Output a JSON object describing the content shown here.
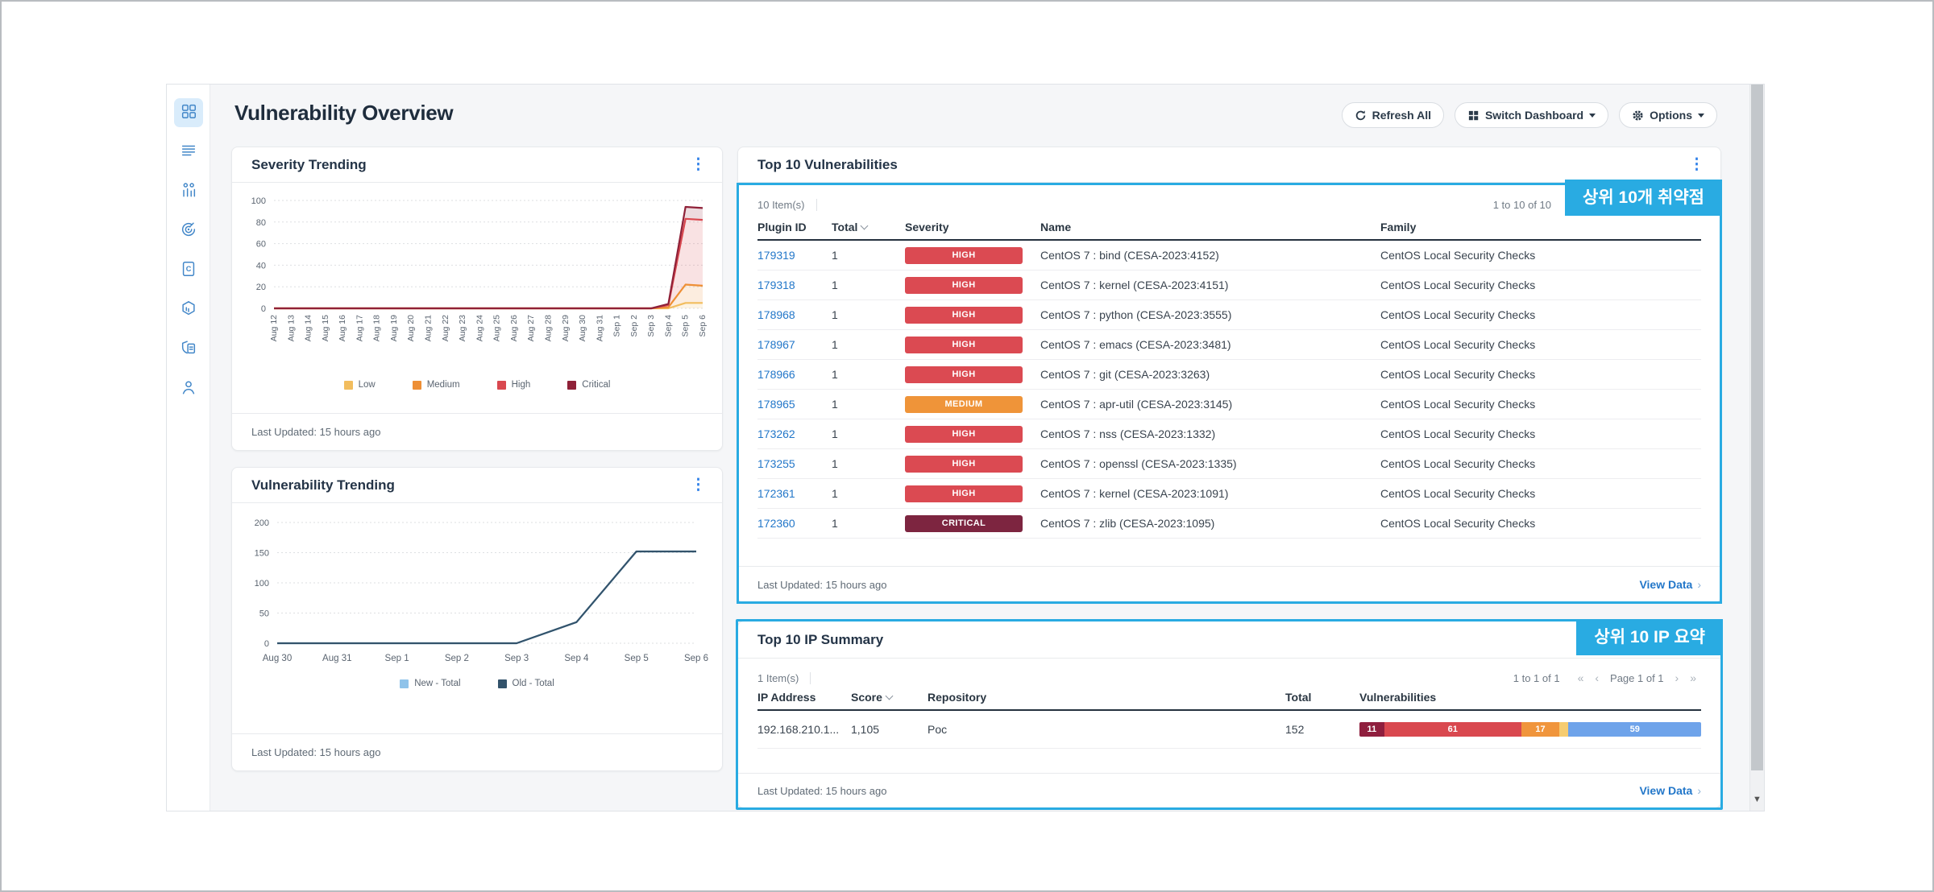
{
  "header": {
    "title": "Vulnerability Overview",
    "buttons": [
      {
        "label": "Refresh All",
        "icon": "refresh-icon",
        "caret": false
      },
      {
        "label": "Switch Dashboard",
        "icon": "grid-icon",
        "caret": true
      },
      {
        "label": "Options",
        "icon": "gear-icon",
        "caret": true
      }
    ]
  },
  "sidebar": {
    "items": [
      {
        "icon": "dashboard-grid-icon",
        "active": true
      },
      {
        "icon": "list-menu-icon",
        "active": false
      },
      {
        "icon": "org-chart-icon",
        "active": false
      },
      {
        "icon": "scan-target-icon",
        "active": false
      },
      {
        "icon": "report-document-icon",
        "active": false
      },
      {
        "icon": "package-hexagon-icon",
        "active": false
      },
      {
        "icon": "policy-shield-icon",
        "active": false
      },
      {
        "icon": "user-profile-icon",
        "active": false
      }
    ]
  },
  "colors": {
    "accent_cyan": "#29abe2",
    "link_blue": "#2377c9",
    "severity": {
      "HIGH": "#db4a52",
      "MEDIUM": "#ef9439",
      "CRITICAL": "#7d2540",
      "LOW": "#f5c96a",
      "INFO": "#6ea3ea"
    }
  },
  "panels": {
    "severity_trending": {
      "title": "Severity Trending",
      "last_updated": "Last Updated: 15 hours ago"
    },
    "vulnerability_trending": {
      "title": "Vulnerability Trending",
      "last_updated": "Last Updated: 15 hours ago"
    },
    "top_vulnerabilities": {
      "title": "Top 10 Vulnerabilities",
      "highlight_label": "상위 10개 취약점",
      "items_count": "10 Item(s)",
      "range": "1 to 10 of 10",
      "columns": [
        "Plugin ID",
        "Total",
        "Severity",
        "Name",
        "Family"
      ],
      "sorted_column": "Total",
      "rows": [
        {
          "plugin_id": "179319",
          "total": "1",
          "severity": "HIGH",
          "name": "CentOS 7 : bind (CESA-2023:4152)",
          "family": "CentOS Local Security Checks"
        },
        {
          "plugin_id": "179318",
          "total": "1",
          "severity": "HIGH",
          "name": "CentOS 7 : kernel (CESA-2023:4151)",
          "family": "CentOS Local Security Checks"
        },
        {
          "plugin_id": "178968",
          "total": "1",
          "severity": "HIGH",
          "name": "CentOS 7 : python (CESA-2023:3555)",
          "family": "CentOS Local Security Checks"
        },
        {
          "plugin_id": "178967",
          "total": "1",
          "severity": "HIGH",
          "name": "CentOS 7 : emacs (CESA-2023:3481)",
          "family": "CentOS Local Security Checks"
        },
        {
          "plugin_id": "178966",
          "total": "1",
          "severity": "HIGH",
          "name": "CentOS 7 : git (CESA-2023:3263)",
          "family": "CentOS Local Security Checks"
        },
        {
          "plugin_id": "178965",
          "total": "1",
          "severity": "MEDIUM",
          "name": "CentOS 7 : apr-util (CESA-2023:3145)",
          "family": "CentOS Local Security Checks"
        },
        {
          "plugin_id": "173262",
          "total": "1",
          "severity": "HIGH",
          "name": "CentOS 7 : nss (CESA-2023:1332)",
          "family": "CentOS Local Security Checks"
        },
        {
          "plugin_id": "173255",
          "total": "1",
          "severity": "HIGH",
          "name": "CentOS 7 : openssl (CESA-2023:1335)",
          "family": "CentOS Local Security Checks"
        },
        {
          "plugin_id": "172361",
          "total": "1",
          "severity": "HIGH",
          "name": "CentOS 7 : kernel (CESA-2023:1091)",
          "family": "CentOS Local Security Checks"
        },
        {
          "plugin_id": "172360",
          "total": "1",
          "severity": "CRITICAL",
          "name": "CentOS 7 : zlib (CESA-2023:1095)",
          "family": "CentOS Local Security Checks"
        }
      ],
      "last_updated": "Last Updated: 15 hours ago",
      "view_data": "View Data"
    },
    "ip_summary": {
      "title": "Top 10 IP Summary",
      "highlight_label": "상위 10 IP 요약",
      "items_count": "1 Item(s)",
      "range": "1 to 1 of 1",
      "page_label": "Page 1 of 1",
      "columns": [
        "IP Address",
        "Score",
        "Repository",
        "Total",
        "Vulnerabilities"
      ],
      "sorted_column": "Score",
      "rows": [
        {
          "ip": "192.168.210.1...",
          "score": "1,105",
          "repository": "Poc",
          "total": "152",
          "bar": [
            {
              "label": "11",
              "value": 11,
              "color": "#8f1f3e"
            },
            {
              "label": "61",
              "value": 61,
              "color": "#d9484f"
            },
            {
              "label": "17",
              "value": 17,
              "color": "#f0953c"
            },
            {
              "label": "",
              "value": 4,
              "color": "#f6cc70"
            },
            {
              "label": "59",
              "value": 59,
              "color": "#6ea3ea"
            }
          ]
        }
      ],
      "last_updated": "Last Updated: 15 hours ago",
      "view_data": "View Data"
    }
  },
  "chart_data": [
    {
      "id": "severity_trending",
      "type": "area",
      "stacked": true,
      "title": "Severity Trending",
      "x": [
        "Aug 12",
        "Aug 13",
        "Aug 14",
        "Aug 15",
        "Aug 16",
        "Aug 17",
        "Aug 18",
        "Aug 19",
        "Aug 20",
        "Aug 21",
        "Aug 22",
        "Aug 23",
        "Aug 24",
        "Aug 25",
        "Aug 26",
        "Aug 27",
        "Aug 28",
        "Aug 29",
        "Aug 30",
        "Aug 31",
        "Sep 1",
        "Sep 2",
        "Sep 3",
        "Sep 4",
        "Sep 5",
        "Sep 6"
      ],
      "ylim": [
        0,
        100
      ],
      "yticks": [
        0,
        20,
        40,
        60,
        80,
        100
      ],
      "grid": true,
      "legend_position": "bottom",
      "series": [
        {
          "name": "Low",
          "color": "#f2bd5e",
          "values": [
            0,
            0,
            0,
            0,
            0,
            0,
            0,
            0,
            0,
            0,
            0,
            0,
            0,
            0,
            0,
            0,
            0,
            0,
            0,
            0,
            0,
            0,
            0,
            0,
            5,
            5
          ]
        },
        {
          "name": "Medium",
          "color": "#ee8f35",
          "values": [
            0,
            0,
            0,
            0,
            0,
            0,
            0,
            0,
            0,
            0,
            0,
            0,
            0,
            0,
            0,
            0,
            0,
            0,
            0,
            0,
            0,
            0,
            0,
            1,
            17,
            16
          ]
        },
        {
          "name": "High",
          "color": "#d9484f",
          "values": [
            0,
            0,
            0,
            0,
            0,
            0,
            0,
            0,
            0,
            0,
            0,
            0,
            0,
            0,
            0,
            0,
            0,
            0,
            0,
            0,
            0,
            0,
            0,
            2,
            61,
            61
          ]
        },
        {
          "name": "Critical",
          "color": "#8f2138",
          "values": [
            0,
            0,
            0,
            0,
            0,
            0,
            0,
            0,
            0,
            0,
            0,
            0,
            0,
            0,
            0,
            0,
            0,
            0,
            0,
            0,
            0,
            0,
            0,
            1,
            11,
            11
          ]
        }
      ]
    },
    {
      "id": "vulnerability_trending",
      "type": "line",
      "stacked": false,
      "title": "Vulnerability Trending",
      "x": [
        "Aug 30",
        "Aug 31",
        "Sep 1",
        "Sep 2",
        "Sep 3",
        "Sep 4",
        "Sep 5",
        "Sep 6"
      ],
      "ylim": [
        0,
        200
      ],
      "yticks": [
        0,
        50,
        100,
        150,
        200
      ],
      "grid": true,
      "legend_position": "bottom",
      "series": [
        {
          "name": "New - Total",
          "color": "#8fc3ea",
          "values": [
            0,
            0,
            0,
            0,
            0,
            35,
            152,
            152
          ]
        },
        {
          "name": "Old - Total",
          "color": "#33536b",
          "values": [
            0,
            0,
            0,
            0,
            0,
            35,
            152,
            152
          ]
        }
      ]
    }
  ]
}
